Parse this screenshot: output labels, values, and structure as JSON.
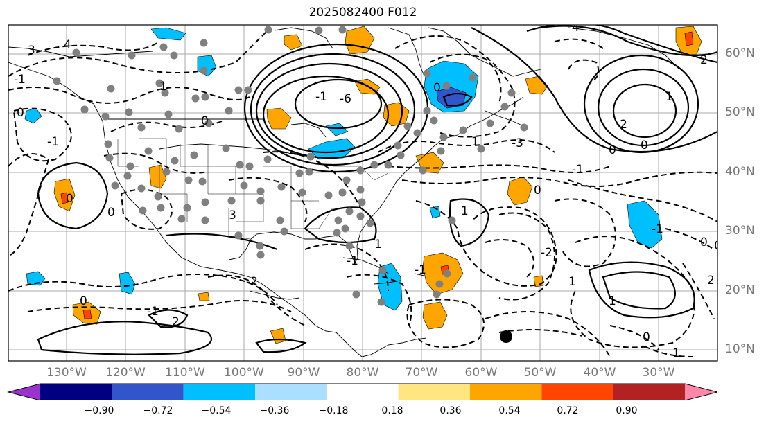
{
  "title": "2025082400 F012",
  "lat_labels": [
    "60°N",
    "50°N",
    "40°N",
    "30°N",
    "20°N",
    "10°N"
  ],
  "lon_labels": [
    "130°W",
    "120°W",
    "110°W",
    "100°W",
    "90°W",
    "80°W",
    "70°W",
    "60°W",
    "50°W",
    "40°W",
    "30°W"
  ],
  "colorbar": {
    "colors": [
      "#9933cc",
      "#000080",
      "#3355cc",
      "#00bfff",
      "#aadfff",
      "#ffffff",
      "#ffe680",
      "#ffa500",
      "#ff4500",
      "#b22222",
      "#ff88aa"
    ],
    "ticks": [
      "−0.90",
      "−0.72",
      "−0.54",
      "−0.36",
      "−0.18",
      "0.18",
      "0.36",
      "0.54",
      "0.72",
      "0.90"
    ]
  },
  "contour_labels": [
    "3",
    "4",
    "-1",
    "0",
    "-1",
    "1",
    "-6",
    "0",
    "-2",
    "2",
    "-3",
    "0",
    "-1",
    "0",
    "1",
    "-1",
    "2",
    "-1",
    "0",
    "-2",
    "0",
    "3",
    "-1",
    "0",
    "0",
    "1",
    "1",
    "-1",
    "-2",
    "1",
    "0",
    "-1",
    "1",
    "2",
    "1",
    "0",
    "4",
    "0",
    "1",
    "0"
  ]
}
